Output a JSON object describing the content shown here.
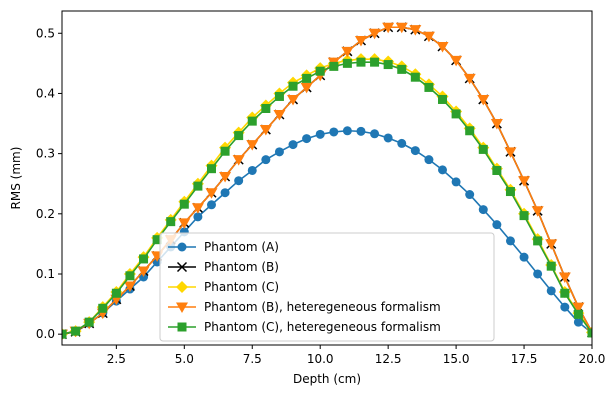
{
  "chart_data": {
    "type": "line",
    "x_label": "Depth (cm)",
    "y_label": "RMS (mm)",
    "x": [
      0.5,
      1,
      1.5,
      2,
      2.5,
      3,
      3.5,
      4,
      4.5,
      5,
      5.5,
      6,
      6.5,
      7,
      7.5,
      8,
      8.5,
      9,
      9.5,
      10,
      10.5,
      11,
      11.5,
      12,
      12.5,
      13,
      13.5,
      14,
      14.5,
      15,
      15.5,
      16,
      16.5,
      17,
      17.5,
      18,
      18.5,
      19,
      19.5,
      20
    ],
    "series": [
      {
        "name": "Phantom (A)",
        "color": "#1f77b4",
        "marker": "circle",
        "values": [
          0,
          0.005,
          0.018,
          0.035,
          0.055,
          0.075,
          0.095,
          0.12,
          0.145,
          0.17,
          0.195,
          0.215,
          0.235,
          0.255,
          0.272,
          0.29,
          0.303,
          0.315,
          0.325,
          0.332,
          0.336,
          0.338,
          0.337,
          0.333,
          0.326,
          0.317,
          0.305,
          0.29,
          0.273,
          0.253,
          0.232,
          0.207,
          0.182,
          0.155,
          0.128,
          0.1,
          0.072,
          0.045,
          0.02,
          0.002
        ]
      },
      {
        "name": "Phantom (B)",
        "color": "#000000",
        "marker": "x",
        "values": [
          0,
          0.004,
          0.018,
          0.035,
          0.058,
          0.08,
          0.105,
          0.13,
          0.157,
          0.185,
          0.21,
          0.235,
          0.262,
          0.29,
          0.315,
          0.34,
          0.365,
          0.39,
          0.41,
          0.43,
          0.452,
          0.47,
          0.488,
          0.5,
          0.51,
          0.51,
          0.506,
          0.495,
          0.478,
          0.455,
          0.425,
          0.39,
          0.35,
          0.303,
          0.255,
          0.205,
          0.15,
          0.095,
          0.045,
          0.003
        ]
      },
      {
        "name": "Phantom (C)",
        "color": "#ffd700",
        "marker": "diamond",
        "values": [
          0,
          0.005,
          0.02,
          0.045,
          0.07,
          0.1,
          0.128,
          0.16,
          0.19,
          0.22,
          0.25,
          0.28,
          0.31,
          0.335,
          0.36,
          0.38,
          0.4,
          0.418,
          0.43,
          0.442,
          0.45,
          0.455,
          0.457,
          0.457,
          0.453,
          0.445,
          0.432,
          0.415,
          0.395,
          0.37,
          0.342,
          0.31,
          0.275,
          0.24,
          0.2,
          0.158,
          0.115,
          0.07,
          0.035,
          0.003
        ]
      },
      {
        "name": "Phantom (B), heteregeneous formalism",
        "color": "#ff7f0e",
        "marker": "triangle-down",
        "values": [
          0,
          0.005,
          0.018,
          0.035,
          0.058,
          0.08,
          0.105,
          0.13,
          0.157,
          0.185,
          0.21,
          0.235,
          0.262,
          0.29,
          0.315,
          0.34,
          0.365,
          0.39,
          0.41,
          0.43,
          0.452,
          0.47,
          0.488,
          0.5,
          0.51,
          0.51,
          0.506,
          0.495,
          0.478,
          0.455,
          0.425,
          0.39,
          0.35,
          0.303,
          0.255,
          0.205,
          0.15,
          0.095,
          0.045,
          0.003
        ]
      },
      {
        "name": "Phantom (C), heteregeneous formalism",
        "color": "#2ca02c",
        "marker": "square",
        "values": [
          0,
          0.005,
          0.02,
          0.043,
          0.068,
          0.097,
          0.125,
          0.157,
          0.187,
          0.216,
          0.246,
          0.275,
          0.304,
          0.33,
          0.354,
          0.375,
          0.395,
          0.412,
          0.425,
          0.437,
          0.445,
          0.45,
          0.452,
          0.452,
          0.448,
          0.44,
          0.427,
          0.41,
          0.39,
          0.366,
          0.338,
          0.307,
          0.272,
          0.237,
          0.197,
          0.155,
          0.113,
          0.068,
          0.033,
          0.002
        ]
      }
    ],
    "xlim": [
      0.5,
      20
    ],
    "ylim": [
      -0.018,
      0.537
    ],
    "xticks": [
      {
        "value": 2.5,
        "label": "2.5"
      },
      {
        "value": 5,
        "label": "5.0"
      },
      {
        "value": 7.5,
        "label": "7.5"
      },
      {
        "value": 10,
        "label": "10.0"
      },
      {
        "value": 12.5,
        "label": "12.5"
      },
      {
        "value": 15,
        "label": "15.0"
      },
      {
        "value": 17.5,
        "label": "17.5"
      },
      {
        "value": 20,
        "label": "20.0"
      }
    ],
    "yticks": [
      {
        "value": 0,
        "label": "0.0"
      },
      0.1,
      0.2,
      0.3,
      0.4,
      {
        "value": 0.5,
        "label": "0.5"
      }
    ],
    "grid": false,
    "legend": "lower center"
  }
}
